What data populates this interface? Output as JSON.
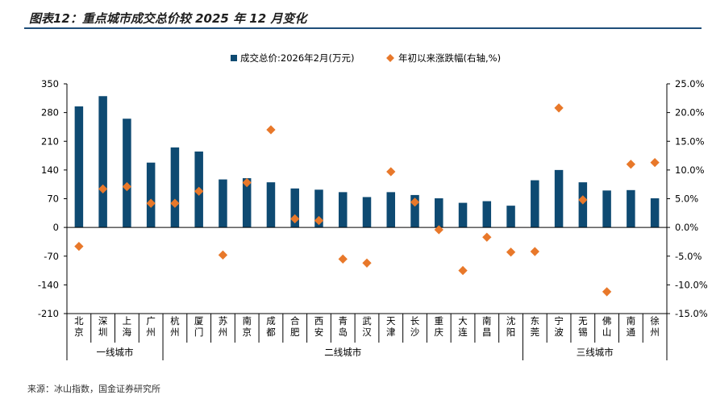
{
  "title": "图表12：重点城市成交总价较 2025 年 12 月变化",
  "source": "来源：冰山指数，国金证券研究所",
  "colors": {
    "bar": "#0e4a72",
    "marker": "#e8782a",
    "axis": "#000000",
    "title_rule": "#1f4e79"
  },
  "chart_data": {
    "type": "bar",
    "title": "图表12：重点城市成交总价较 2025 年 12 月变化",
    "xlabel": "",
    "ylabel": "",
    "legend": {
      "placement": "top-center",
      "items": [
        "成交总价:2026年2月(万元)",
        "年初以来涨跌幅(右轴,%)"
      ]
    },
    "categories": [
      "北京",
      "深圳",
      "上海",
      "广州",
      "杭州",
      "厦门",
      "苏州",
      "南京",
      "成都",
      "合肥",
      "西安",
      "青岛",
      "武汉",
      "天津",
      "长沙",
      "重庆",
      "大连",
      "南昌",
      "沈阳",
      "东莞",
      "宁波",
      "无锡",
      "佛山",
      "南通",
      "徐州"
    ],
    "tiers": [
      {
        "label": "一线城市",
        "count": 4
      },
      {
        "label": "二线城市",
        "count": 15
      },
      {
        "label": "三线城市",
        "count": 6
      }
    ],
    "series": [
      {
        "name": "成交总价:2026年2月(万元)",
        "axis": "left",
        "kind": "bar",
        "values": [
          295,
          320,
          265,
          158,
          195,
          185,
          117,
          120,
          110,
          95,
          92,
          86,
          74,
          86,
          79,
          71,
          60,
          64,
          53,
          115,
          140,
          110,
          90,
          91,
          71
        ]
      },
      {
        "name": "年初以来涨跌幅(右轴,%)",
        "axis": "right",
        "kind": "scatter",
        "values": [
          -3.3,
          6.7,
          7.1,
          4.2,
          4.2,
          6.3,
          -4.8,
          7.8,
          17.0,
          1.5,
          1.2,
          -5.5,
          -6.2,
          9.7,
          4.4,
          -0.4,
          -7.5,
          -1.7,
          -4.3,
          -4.2,
          20.8,
          4.8,
          -11.2,
          11.0,
          11.3
        ]
      }
    ],
    "y_left": {
      "min": -210,
      "max": 350,
      "ticks": [
        "350",
        "280",
        "210",
        "140",
        "70",
        "0",
        "-70",
        "-140",
        "-210"
      ]
    },
    "y_right": {
      "min": -15,
      "max": 25,
      "ticks": [
        "25.0%",
        "20.0%",
        "15.0%",
        "10.0%",
        "5.0%",
        "0.0%",
        "-5.0%",
        "-10.0%",
        "-15.0%"
      ]
    },
    "grid": false
  }
}
